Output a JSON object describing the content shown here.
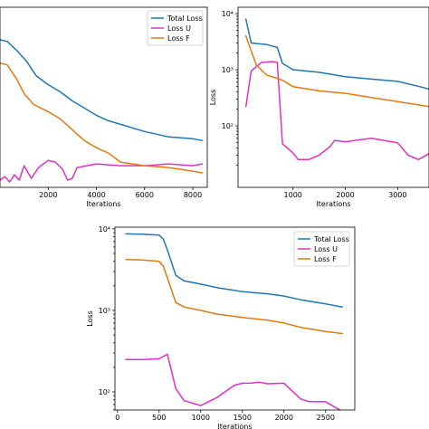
{
  "chart_data": [
    {
      "type": "line",
      "xlabel": "Iterations",
      "ylabel": "",
      "x_ticks": [
        2000,
        4000,
        6000,
        8000
      ],
      "xlim": [
        0,
        8600
      ],
      "ylim": [
        0,
        100
      ],
      "log_y": false,
      "show_y_ticks": false,
      "legend_position": "top-right",
      "grid": false,
      "series": [
        {
          "name": "Total Loss",
          "color": "#1f77b4",
          "x": [
            0,
            300,
            700,
            1100,
            1500,
            2000,
            2500,
            3000,
            3500,
            4000,
            4500,
            5000,
            6000,
            7000,
            8000,
            8400
          ],
          "y": [
            82,
            81,
            76,
            70,
            62,
            57,
            53,
            48,
            44,
            40,
            37,
            35,
            31,
            28,
            27,
            26
          ]
        },
        {
          "name": "Loss U",
          "color": "#e030c8",
          "x": [
            0,
            200,
            400,
            600,
            800,
            1000,
            1300,
            1600,
            2000,
            2300,
            2600,
            2800,
            3000,
            3200,
            3600,
            4000,
            5000,
            6000,
            7000,
            8000,
            8400
          ],
          "y": [
            4,
            6,
            3,
            7,
            4,
            12,
            5,
            11,
            15,
            14,
            10,
            4,
            5,
            11,
            12,
            13,
            12,
            12,
            13,
            12,
            13
          ]
        },
        {
          "name": "Loss F",
          "color": "#e07b10",
          "x": [
            0,
            300,
            700,
            1000,
            1400,
            2000,
            2500,
            3000,
            3500,
            4000,
            4500,
            5000,
            6000,
            7000,
            8000,
            8400
          ],
          "y": [
            69,
            68,
            60,
            52,
            46,
            42,
            38,
            32,
            26,
            22,
            19,
            14,
            12,
            11,
            9,
            8
          ]
        }
      ]
    },
    {
      "type": "line",
      "xlabel": "Iterations",
      "ylabel": "Loss",
      "x_ticks": [
        1000,
        2000,
        3000
      ],
      "y_ticks": [
        100,
        1000,
        10000
      ],
      "y_tick_labels": [
        "10²",
        "10³",
        "10⁴"
      ],
      "xlim": [
        -50,
        3600
      ],
      "ylim": [
        8,
        13000
      ],
      "log_y": true,
      "show_y_ticks": true,
      "legend_position": "none",
      "grid": false,
      "series": [
        {
          "name": "Total Loss",
          "color": "#1f77b4",
          "x": [
            100,
            200,
            500,
            700,
            800,
            1000,
            1500,
            2000,
            2500,
            3000,
            3500,
            3600
          ],
          "y": [
            8000,
            3000,
            2800,
            2500,
            1300,
            1000,
            900,
            750,
            680,
            620,
            480,
            450
          ]
        },
        {
          "name": "Loss U",
          "color": "#e030c8",
          "x": [
            100,
            200,
            400,
            600,
            700,
            800,
            1000,
            1100,
            1300,
            1500,
            1700,
            1800,
            2000,
            2500,
            3000,
            3200,
            3400,
            3600
          ],
          "y": [
            220,
            950,
            1350,
            1400,
            1350,
            48,
            33,
            25,
            25,
            30,
            42,
            55,
            52,
            60,
            50,
            30,
            25,
            32
          ]
        },
        {
          "name": "Loss F",
          "color": "#e07b10",
          "x": [
            100,
            300,
            500,
            700,
            800,
            1000,
            1500,
            2000,
            2500,
            3000,
            3600
          ],
          "y": [
            4000,
            1200,
            800,
            700,
            650,
            500,
            420,
            380,
            320,
            270,
            220
          ]
        }
      ]
    },
    {
      "type": "line",
      "xlabel": "Iterations",
      "ylabel": "Loss",
      "x_ticks": [
        0,
        500,
        1000,
        1500,
        2000,
        2500
      ],
      "y_ticks": [
        100,
        1000,
        10000
      ],
      "y_tick_labels": [
        "10²",
        "10³",
        "10⁴"
      ],
      "xlim": [
        -30,
        2850
      ],
      "ylim": [
        60,
        10500
      ],
      "log_y": true,
      "show_y_ticks": true,
      "legend_position": "top-right",
      "grid": false,
      "series": [
        {
          "name": "Total Loss",
          "color": "#1f77b4",
          "x": [
            100,
            300,
            500,
            550,
            600,
            700,
            800,
            1000,
            1200,
            1500,
            1800,
            2000,
            2200,
            2500,
            2700
          ],
          "y": [
            8700,
            8600,
            8400,
            7500,
            5500,
            2700,
            2300,
            2100,
            1900,
            1700,
            1600,
            1500,
            1350,
            1200,
            1100
          ]
        },
        {
          "name": "Loss U",
          "color": "#e030c8",
          "x": [
            100,
            300,
            500,
            600,
            700,
            800,
            1000,
            1200,
            1400,
            1500,
            1600,
            1700,
            1800,
            2000,
            2200,
            2300,
            2500,
            2600,
            2700
          ],
          "y": [
            250,
            250,
            255,
            290,
            110,
            78,
            68,
            86,
            120,
            128,
            128,
            132,
            126,
            128,
            82,
            76,
            76,
            66,
            58
          ]
        },
        {
          "name": "Loss F",
          "color": "#e07b10",
          "x": [
            100,
            300,
            500,
            550,
            600,
            700,
            800,
            1000,
            1200,
            1500,
            1800,
            2000,
            2200,
            2500,
            2700
          ],
          "y": [
            4200,
            4150,
            4000,
            3500,
            2500,
            1250,
            1100,
            1000,
            900,
            820,
            760,
            700,
            620,
            550,
            520
          ]
        }
      ]
    }
  ]
}
